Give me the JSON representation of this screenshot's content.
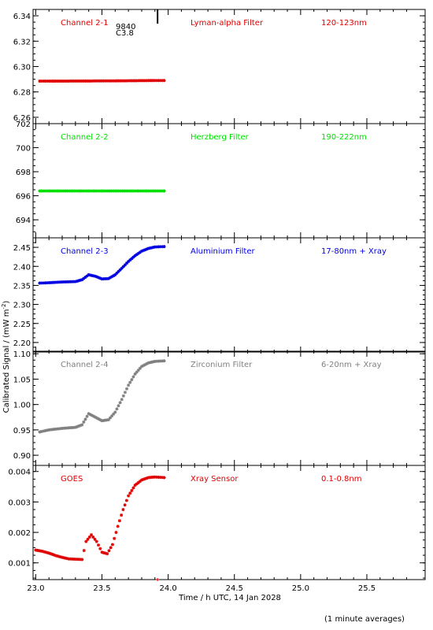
{
  "figure": {
    "xlabel": "Time / h UTC, 14 Jan 2028",
    "ylabel_main": "Calibrated Signal / (mW m",
    "ylabel_sup": "-2",
    "ylabel_end": ")",
    "footnote": "(1 minute averages)"
  },
  "flare_marker": {
    "label_1": "9840",
    "label_2": "C3.8",
    "time": 23.92
  },
  "chart_data": [
    {
      "type": "scatter",
      "channel": "Channel 2-1",
      "filter": "Lyman-alpha Filter",
      "band": "120-123nm",
      "color": "#e00000",
      "xlim": [
        22.98,
        25.94
      ],
      "ylim": [
        6.255,
        6.345
      ],
      "yticks": [
        6.26,
        6.28,
        6.3,
        6.32,
        6.34
      ],
      "yticklabels": [
        "6.26",
        "6.28",
        "6.30",
        "6.32",
        "6.34"
      ],
      "x": [
        23.03,
        23.1,
        23.2,
        23.3,
        23.4,
        23.5,
        23.6,
        23.7,
        23.8,
        23.9,
        23.97
      ],
      "y": [
        6.2885,
        6.2885,
        6.2885,
        6.2886,
        6.2886,
        6.2887,
        6.2887,
        6.2888,
        6.2889,
        6.289,
        6.289
      ]
    },
    {
      "type": "scatter",
      "channel": "Channel 2-2",
      "filter": "Herzberg Filter",
      "band": "190-222nm",
      "color": "#00e000",
      "xlim": [
        22.98,
        25.94
      ],
      "ylim": [
        692.5,
        702.0
      ],
      "yticks": [
        694,
        696,
        698,
        700,
        702
      ],
      "yticklabels": [
        "694",
        "696",
        "698",
        "700",
        "702"
      ],
      "x": [
        23.03,
        23.2,
        23.4,
        23.6,
        23.8,
        23.97
      ],
      "y": [
        696.4,
        696.4,
        696.4,
        696.4,
        696.4,
        696.4
      ]
    },
    {
      "type": "scatter",
      "channel": "Channel 2-3",
      "filter": "Aluminium Filter",
      "band": "17-80nm + Xray",
      "color": "#0000e0",
      "xlim": [
        22.98,
        25.94
      ],
      "ylim": [
        2.175,
        2.475
      ],
      "yticks": [
        2.2,
        2.25,
        2.3,
        2.35,
        2.4,
        2.45
      ],
      "yticklabels": [
        "2.20",
        "2.25",
        "2.30",
        "2.35",
        "2.40",
        "2.45"
      ],
      "x": [
        23.03,
        23.1,
        23.2,
        23.3,
        23.35,
        23.4,
        23.45,
        23.5,
        23.55,
        23.6,
        23.65,
        23.7,
        23.75,
        23.8,
        23.85,
        23.9,
        23.97
      ],
      "y": [
        2.356,
        2.357,
        2.359,
        2.36,
        2.365,
        2.378,
        2.374,
        2.367,
        2.368,
        2.378,
        2.395,
        2.413,
        2.428,
        2.44,
        2.447,
        2.451,
        2.452
      ]
    },
    {
      "type": "scatter",
      "channel": "Channel 2-4",
      "filter": "Zirconium Filter",
      "band": "6-20nm + Xray",
      "color": "#808080",
      "xlim": [
        22.98,
        25.94
      ],
      "ylim": [
        0.88,
        1.105
      ],
      "yticks": [
        0.9,
        0.95,
        1.0,
        1.05,
        1.1
      ],
      "yticklabels": [
        "0.90",
        "0.95",
        "1.00",
        "1.05",
        "1.10"
      ],
      "x": [
        23.03,
        23.1,
        23.2,
        23.3,
        23.35,
        23.4,
        23.45,
        23.5,
        23.55,
        23.6,
        23.65,
        23.7,
        23.75,
        23.8,
        23.85,
        23.9,
        23.97
      ],
      "y": [
        0.946,
        0.95,
        0.953,
        0.955,
        0.96,
        0.982,
        0.975,
        0.968,
        0.97,
        0.985,
        1.01,
        1.038,
        1.06,
        1.075,
        1.082,
        1.085,
        1.086
      ]
    },
    {
      "type": "scatter",
      "channel": "GOES",
      "filter": "Xray Sensor",
      "band": "0.1-0.8nm",
      "color": "#e00000",
      "xlim": [
        22.98,
        25.94
      ],
      "ylim": [
        0.00045,
        0.0042
      ],
      "yticks": [
        0.001,
        0.002,
        0.003,
        0.004
      ],
      "yticklabels": [
        "0.001",
        "0.002",
        "0.003",
        "0.004"
      ],
      "x": [
        23.0,
        23.05,
        23.1,
        23.15,
        23.2,
        23.25,
        23.3,
        23.35,
        23.38,
        23.42,
        23.46,
        23.5,
        23.54,
        23.58,
        23.62,
        23.66,
        23.7,
        23.75,
        23.8,
        23.85,
        23.9,
        23.97
      ],
      "y": [
        0.00142,
        0.00138,
        0.00132,
        0.00124,
        0.00118,
        0.00113,
        0.00112,
        0.00111,
        0.0017,
        0.00192,
        0.0017,
        0.00135,
        0.0013,
        0.0016,
        0.0022,
        0.00275,
        0.0032,
        0.00355,
        0.00372,
        0.0038,
        0.00382,
        0.0038
      ]
    }
  ],
  "x_axis": {
    "ticks": [
      23.0,
      23.5,
      24.0,
      24.5,
      25.0,
      25.5
    ],
    "ticklabels": [
      "23.0",
      "23.5",
      "24.0",
      "24.5",
      "25.0",
      "25.5"
    ]
  }
}
